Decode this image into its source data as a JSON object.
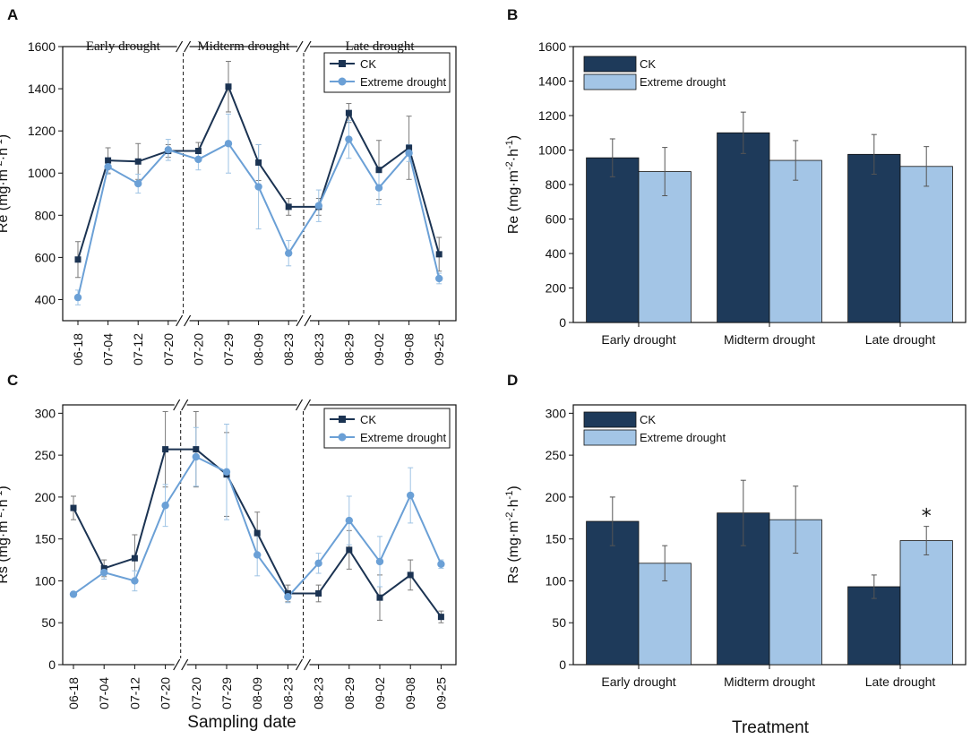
{
  "colors": {
    "ck": "#1b3352",
    "drought": "#6ba0d6",
    "ck_bar": "#1e3a5a",
    "drought_bar": "#a3c5e6",
    "error": "#8a8a8a"
  },
  "panels": {
    "A": {
      "letter": "A"
    },
    "B": {
      "letter": "B"
    },
    "C": {
      "letter": "C"
    },
    "D": {
      "letter": "D"
    }
  },
  "bottom_labels": {
    "left": "Sampling date",
    "right": "Treatment"
  },
  "chart_data": [
    {
      "panel": "A",
      "type": "line",
      "ylabel": "Re (mg·m⁻²·h⁻¹)",
      "ylim": [
        300,
        1600
      ],
      "yticks": [
        400,
        600,
        800,
        1000,
        1200,
        1400,
        1600
      ],
      "x": [
        "06-18",
        "07-04",
        "07-12",
        "07-20",
        "07-20",
        "07-29",
        "08-09",
        "08-23",
        "08-23",
        "08-29",
        "09-02",
        "09-08",
        "09-25"
      ],
      "phases": [
        "Early drought",
        "Midterm drought",
        "Late drought"
      ],
      "legend": [
        "CK",
        "Extreme drought"
      ],
      "series": [
        {
          "name": "CK",
          "values": [
            590,
            1060,
            1055,
            1105,
            1105,
            1410,
            1050,
            840,
            840,
            1285,
            1015,
            1120,
            615
          ],
          "errors": [
            85,
            60,
            85,
            30,
            40,
            120,
            85,
            40,
            40,
            45,
            140,
            150,
            80
          ]
        },
        {
          "name": "Extreme drought",
          "values": [
            410,
            1030,
            950,
            1110,
            1065,
            1140,
            935,
            620,
            845,
            1160,
            930,
            1095,
            500
          ],
          "errors": [
            35,
            35,
            45,
            50,
            50,
            140,
            200,
            60,
            75,
            90,
            80,
            40,
            25
          ]
        }
      ]
    },
    {
      "panel": "B",
      "type": "bar",
      "ylabel": "Re (mg·m⁻²·h⁻¹)",
      "ylim": [
        0,
        1600
      ],
      "yticks": [
        0,
        200,
        400,
        600,
        800,
        1000,
        1200,
        1400,
        1600
      ],
      "categories": [
        "Early drought",
        "Midterm drought",
        "Late drought"
      ],
      "legend": [
        "CK",
        "Extreme drought"
      ],
      "series": [
        {
          "name": "CK",
          "values": [
            955,
            1100,
            975
          ],
          "errors": [
            110,
            120,
            115
          ]
        },
        {
          "name": "Extreme drought",
          "values": [
            875,
            940,
            905
          ],
          "errors": [
            140,
            115,
            115
          ]
        }
      ]
    },
    {
      "panel": "C",
      "type": "line",
      "ylabel": "Rs (mg·m⁻²·h⁻¹)",
      "xlabel": "Sampling date",
      "ylim": [
        0,
        310
      ],
      "yticks": [
        0,
        50,
        100,
        150,
        200,
        250,
        300
      ],
      "x": [
        "06-18",
        "07-04",
        "07-12",
        "07-20",
        "07-20",
        "07-29",
        "08-09",
        "08-23",
        "08-23",
        "08-29",
        "09-02",
        "09-08",
        "09-25"
      ],
      "legend": [
        "CK",
        "Extreme drought"
      ],
      "series": [
        {
          "name": "CK",
          "values": [
            187,
            115,
            127,
            257,
            257,
            227,
            157,
            85,
            85,
            137,
            80,
            107,
            57
          ],
          "errors": [
            14,
            10,
            28,
            45,
            45,
            50,
            25,
            10,
            10,
            23,
            27,
            18,
            7
          ]
        },
        {
          "name": "Extreme drought",
          "values": [
            84,
            110,
            100,
            190,
            248,
            230,
            131,
            81,
            121,
            172,
            123,
            202,
            120
          ],
          "errors": [
            3,
            8,
            12,
            25,
            35,
            57,
            25,
            7,
            12,
            29,
            30,
            33,
            5
          ]
        }
      ]
    },
    {
      "panel": "D",
      "type": "bar",
      "ylabel": "Rs (mg·m⁻²·h⁻¹)",
      "xlabel": "Treatment",
      "ylim": [
        0,
        310
      ],
      "yticks": [
        0,
        50,
        100,
        150,
        200,
        250,
        300
      ],
      "categories": [
        "Early drought",
        "Midterm drought",
        "Late drought"
      ],
      "legend": [
        "CK",
        "Extreme drought"
      ],
      "annotation": "*",
      "series": [
        {
          "name": "CK",
          "values": [
            171,
            181,
            93
          ],
          "errors": [
            29,
            39,
            14
          ]
        },
        {
          "name": "Extreme drought",
          "values": [
            121,
            173,
            148
          ],
          "errors": [
            21,
            40,
            17
          ]
        }
      ]
    }
  ]
}
